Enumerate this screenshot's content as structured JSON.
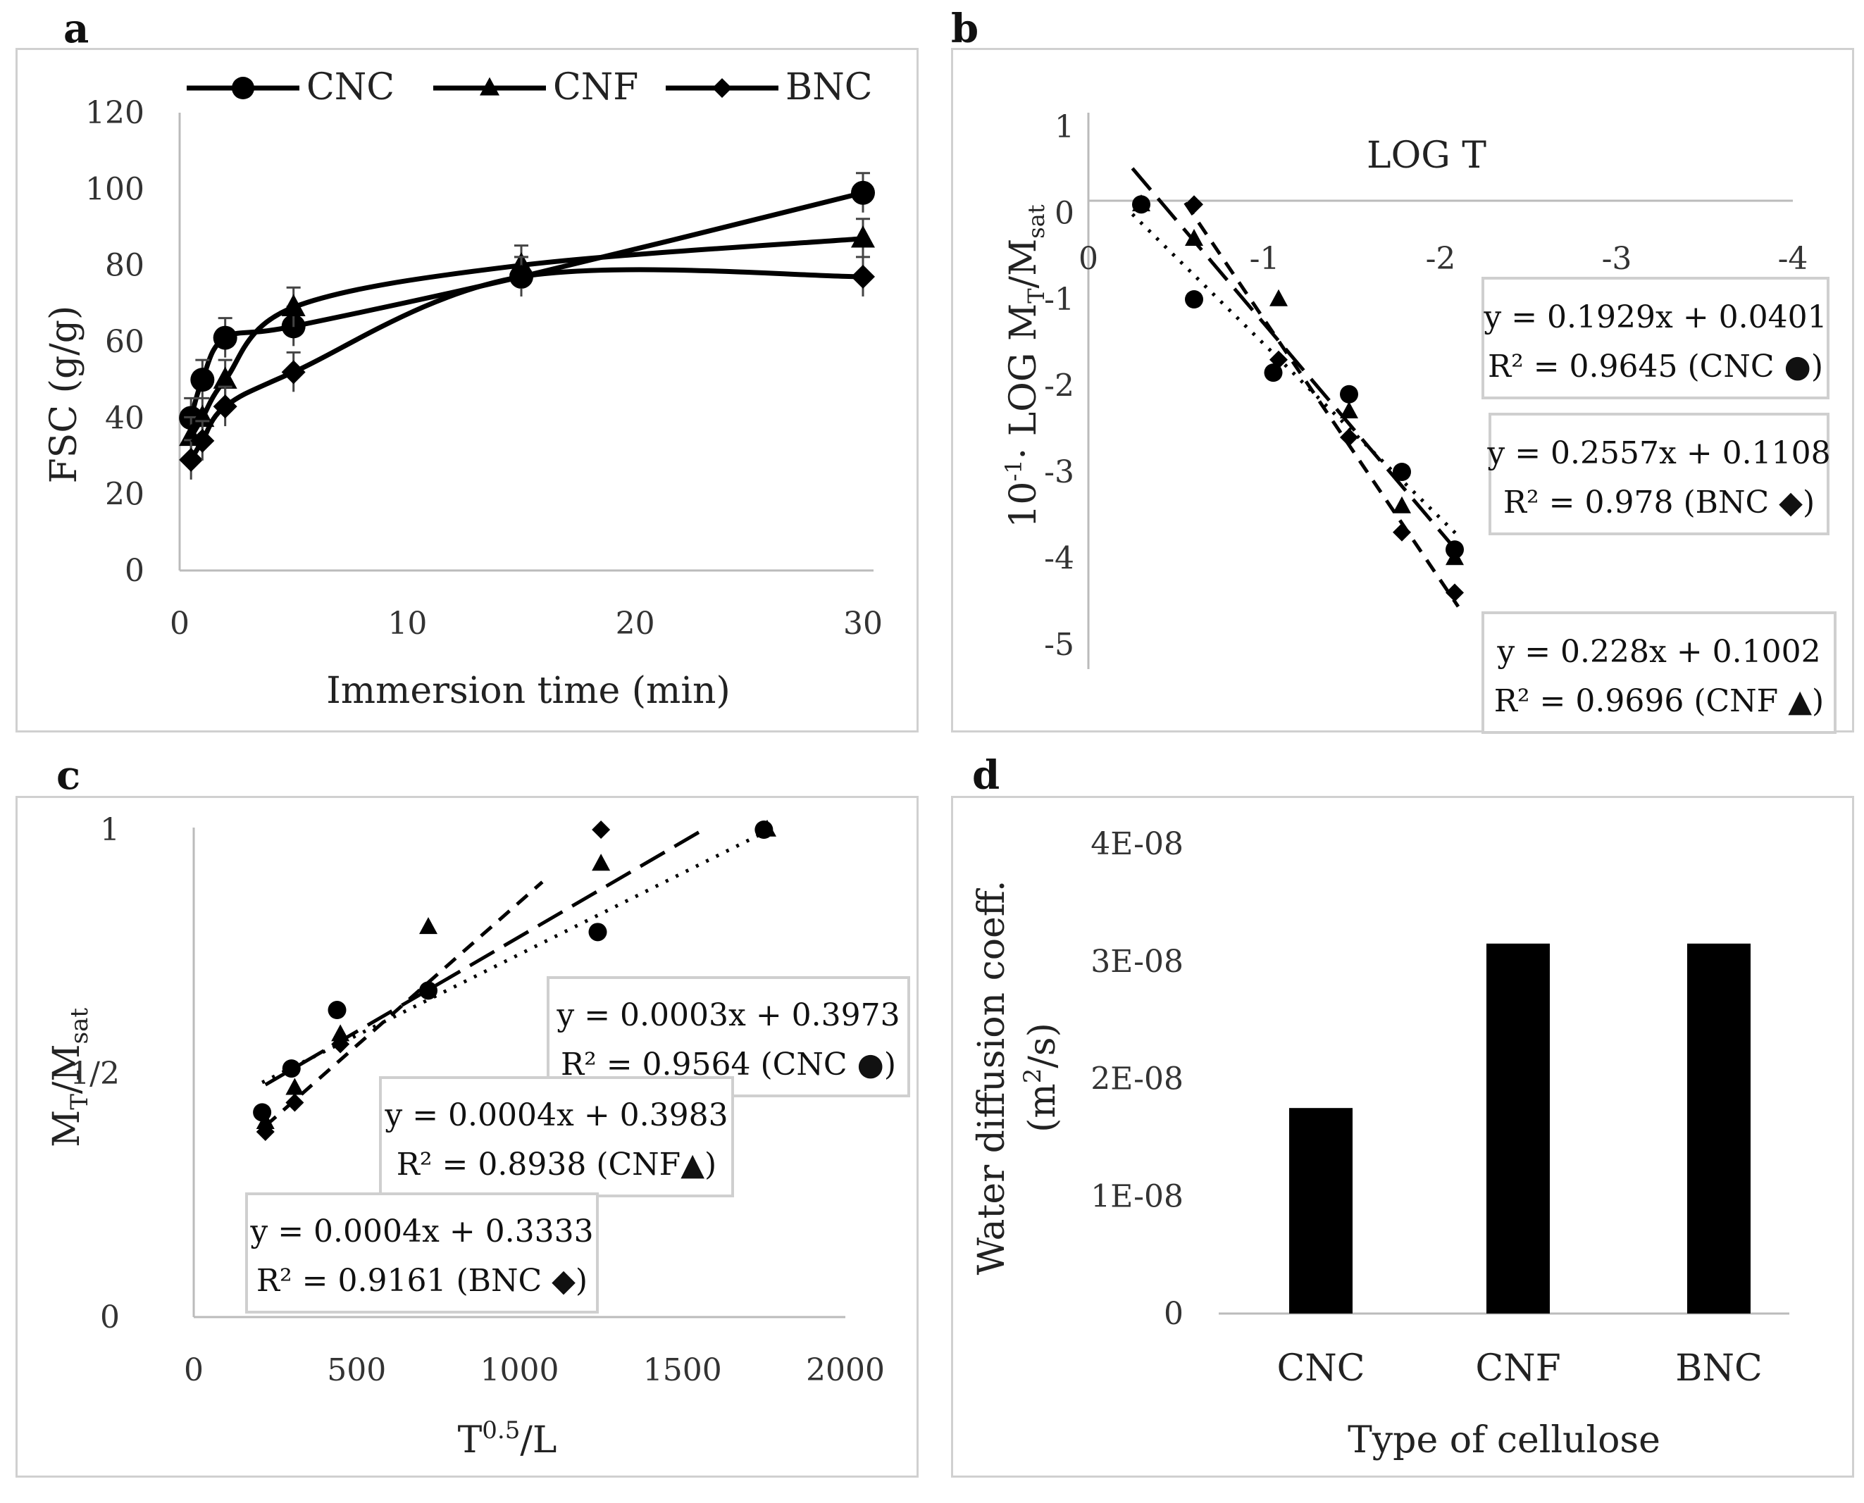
{
  "panels": {
    "a": {
      "letter": "a"
    },
    "b": {
      "letter": "b"
    },
    "c": {
      "letter": "c"
    },
    "d": {
      "letter": "d"
    }
  },
  "chart_data": [
    {
      "id": "a",
      "type": "line",
      "xlabel": "Immersion time (min)",
      "ylabel": "FSC (g/g)",
      "xlim": [
        0,
        30
      ],
      "ylim": [
        0,
        120
      ],
      "xticks": [
        0,
        10,
        20,
        30
      ],
      "yticks": [
        0,
        20,
        40,
        60,
        80,
        100,
        120
      ],
      "legend": "top",
      "series": [
        {
          "name": "CNC",
          "marker": "circle",
          "x": [
            0.5,
            1,
            2,
            5,
            15,
            30
          ],
          "y": [
            40,
            50,
            61,
            64,
            77,
            99
          ]
        },
        {
          "name": "CNF",
          "marker": "triangle",
          "x": [
            0.5,
            1,
            2,
            5,
            15,
            30
          ],
          "y": [
            35,
            40,
            50,
            69,
            80,
            87
          ]
        },
        {
          "name": "BNC",
          "marker": "diamond",
          "x": [
            0.5,
            1,
            2,
            5,
            15,
            30
          ],
          "y": [
            29,
            34,
            43,
            52,
            77,
            77
          ]
        }
      ]
    },
    {
      "id": "b",
      "type": "scatter",
      "title": "LOG T",
      "ylabel": "10-1· LOG MT/Msat",
      "xlim": [
        0,
        -4
      ],
      "ylim": [
        -5,
        1
      ],
      "xticks": [
        "0",
        "-1",
        "-2",
        "-3",
        "-4"
      ],
      "yticks": [
        "1",
        "0",
        "-1",
        "-2",
        "-3",
        "-4",
        "-5"
      ],
      "series": [
        {
          "name": "CNC",
          "marker": "circle",
          "x": [
            -0.3,
            -0.6,
            -1.05,
            -1.48,
            -1.78,
            -2.08
          ],
          "y": [
            0.1,
            -1.0,
            -1.85,
            -2.1,
            -3.0,
            -3.9
          ]
        },
        {
          "name": "CNF",
          "marker": "triangle",
          "x": [
            -0.3,
            -0.6,
            -1.08,
            -1.48,
            -1.78,
            -2.08
          ],
          "y": [
            0.1,
            -0.3,
            -1.0,
            -2.3,
            -3.4,
            -4.0
          ]
        },
        {
          "name": "BNC",
          "marker": "diamond",
          "x": [
            -0.6,
            -1.08,
            -1.48,
            -1.78,
            -2.08
          ],
          "y": [
            0.1,
            -1.7,
            -2.6,
            -3.7,
            -4.4
          ]
        }
      ],
      "trendlines": [
        {
          "series": "CNC",
          "equation": "y = 0.1929x + 0.0401",
          "r2": "R² = 0.9645 (CNC ●)"
        },
        {
          "series": "BNC",
          "equation": "y = 0.2557x + 0.1108",
          "r2": "R² = 0.978 (BNC ◆)"
        },
        {
          "series": "CNF",
          "equation": "y = 0.228x + 0.1002",
          "r2": "R² = 0.9696 (CNF ▲)"
        }
      ]
    },
    {
      "id": "c",
      "type": "scatter",
      "xlabel": "T0.5/L",
      "ylabel": "MT/Msat",
      "xlim": [
        0,
        2000
      ],
      "ylim": [
        0,
        1
      ],
      "xticks": [
        0,
        500,
        1000,
        1500,
        2000
      ],
      "yticks": [
        "0",
        "1/2",
        "1"
      ],
      "series": [
        {
          "name": "CNC",
          "marker": "circle",
          "x": [
            210,
            300,
            440,
            720,
            1240,
            1750
          ],
          "y": [
            0.42,
            0.51,
            0.63,
            0.67,
            0.79,
            1.0
          ]
        },
        {
          "name": "CNF",
          "marker": "triangle",
          "x": [
            220,
            310,
            450,
            720,
            1250,
            1760
          ],
          "y": [
            0.4,
            0.47,
            0.58,
            0.8,
            0.93,
            1.0
          ]
        },
        {
          "name": "BNC",
          "marker": "diamond",
          "x": [
            220,
            310,
            450,
            720,
            1250
          ],
          "y": [
            0.38,
            0.44,
            0.56,
            0.67,
            1.0
          ]
        }
      ],
      "trendlines": [
        {
          "series": "CNC",
          "equation": "y = 0.0003x + 0.3973",
          "r2": "R² = 0.9564 (CNC ●)"
        },
        {
          "series": "CNF",
          "equation": "y = 0.0004x + 0.3983",
          "r2": "R² = 0.8938 (CNF▲)"
        },
        {
          "series": "BNC",
          "equation": "y = 0.0004x + 0.3333",
          "r2": "R² = 0.9161 (BNC ◆)"
        }
      ]
    },
    {
      "id": "d",
      "type": "bar",
      "xlabel": "Type of cellulose",
      "ylabel": "Water diffusion coeff. (m2/s)",
      "ylim": [
        0,
        4e-08
      ],
      "yticks": [
        "0",
        "1E-08",
        "2E-08",
        "3E-08",
        "4E-08"
      ],
      "categories": [
        "CNC",
        "CNF",
        "BNC"
      ],
      "values": [
        1.75e-08,
        3.15e-08,
        3.15e-08
      ]
    }
  ]
}
